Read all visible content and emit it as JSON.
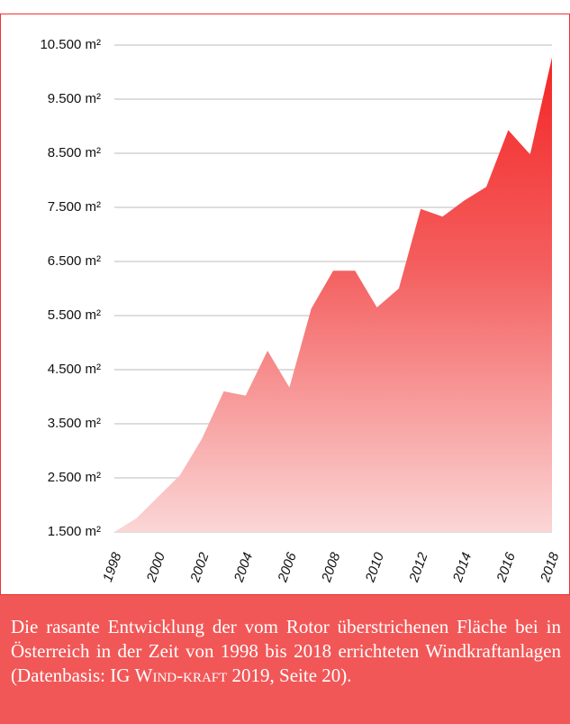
{
  "chart_data": {
    "type": "area",
    "x": [
      1998,
      1999,
      2000,
      2001,
      2002,
      2003,
      2004,
      2005,
      2006,
      2007,
      2008,
      2009,
      2010,
      2011,
      2012,
      2013,
      2014,
      2015,
      2016,
      2017,
      2018
    ],
    "values": [
      1500,
      1750,
      2150,
      2550,
      3220,
      4100,
      4020,
      4850,
      4170,
      5630,
      6330,
      6330,
      5650,
      6000,
      7470,
      7330,
      7630,
      7880,
      8930,
      8480,
      10270
    ],
    "color": "#f42a2a",
    "xlim": [
      1998,
      2018
    ],
    "xticks": [
      1998,
      2000,
      2002,
      2004,
      2006,
      2008,
      2010,
      2012,
      2014,
      2016,
      2018
    ],
    "ylim": [
      1500,
      10500
    ],
    "yticks": [
      {
        "value": 1500,
        "label": "1.500 m²"
      },
      {
        "value": 2500,
        "label": "2.500 m²"
      },
      {
        "value": 3500,
        "label": "3.500 m²"
      },
      {
        "value": 4500,
        "label": "4.500 m²"
      },
      {
        "value": 5500,
        "label": "5.500 m²"
      },
      {
        "value": 6500,
        "label": "6.500 m²"
      },
      {
        "value": 7500,
        "label": "7.500 m²"
      },
      {
        "value": 8500,
        "label": "8.500 m²"
      },
      {
        "value": 9500,
        "label": "9.500 m²"
      },
      {
        "value": 10500,
        "label": "10.500 m²"
      }
    ],
    "grid": true,
    "caption": [
      "Die rasante Entwicklung der vom Rotor überstrichenen Fläche bei in Österreich in der Zeit von 1998 bis 2018 errichteten Windkraftanlagen (Datenbasis: IG ",
      "Wind-kraft",
      " 2019, Seite 20)."
    ]
  }
}
